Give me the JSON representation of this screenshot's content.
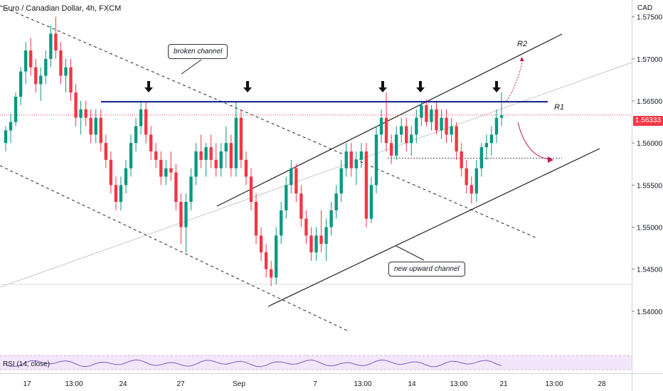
{
  "header": {
    "symbol_line": "Euro / Canadian Dollar, 4h, FXCM",
    "currency": "CAD"
  },
  "annotations": {
    "broken_channel": "broken channel",
    "new_upward_channel": "new upward channel",
    "r1": "R1",
    "r2": "R2"
  },
  "indicator": {
    "rsi_label": "RSI (14, close)"
  },
  "chart_data": {
    "type": "candlestick",
    "symbol": "EURCAD",
    "timeframe": "4h",
    "source": "FXCM",
    "price_axis": {
      "ticks": [
        "1.57500",
        "1.57000",
        "1.56500",
        "1.56000",
        "1.55500",
        "1.55000",
        "1.54500",
        "1.54000"
      ],
      "range": [
        1.535,
        1.577
      ],
      "current_price": "1.56333"
    },
    "time_axis": {
      "ticks": [
        "17",
        "13:00",
        "24",
        "27",
        "Sep",
        "7",
        "13:00",
        "14",
        "13:00",
        "21",
        "13:00",
        "28"
      ]
    },
    "levels": [
      {
        "name": "R1",
        "price": 1.5649
      },
      {
        "name": "support",
        "price": 1.5582
      },
      {
        "name": "low",
        "price": 1.5432
      }
    ],
    "candles": [
      [
        1.56,
        1.562,
        1.559,
        1.5615
      ],
      [
        1.5615,
        1.5635,
        1.56,
        1.5625
      ],
      [
        1.5625,
        1.566,
        1.562,
        1.5655
      ],
      [
        1.5655,
        1.569,
        1.5645,
        1.5685
      ],
      [
        1.5685,
        1.572,
        1.567,
        1.571
      ],
      [
        1.571,
        1.5725,
        1.568,
        1.569
      ],
      [
        1.569,
        1.57,
        1.566,
        1.567
      ],
      [
        1.567,
        1.569,
        1.565,
        1.568
      ],
      [
        1.568,
        1.571,
        1.567,
        1.57
      ],
      [
        1.57,
        1.574,
        1.569,
        1.573
      ],
      [
        1.573,
        1.575,
        1.57,
        1.571
      ],
      [
        1.571,
        1.572,
        1.567,
        1.568
      ],
      [
        1.568,
        1.57,
        1.566,
        1.569
      ],
      [
        1.569,
        1.57,
        1.565,
        1.566
      ],
      [
        1.566,
        1.567,
        1.562,
        1.563
      ],
      [
        1.563,
        1.565,
        1.561,
        1.564
      ],
      [
        1.564,
        1.565,
        1.562,
        1.563
      ],
      [
        1.563,
        1.564,
        1.56,
        1.561
      ],
      [
        1.561,
        1.564,
        1.56,
        1.563
      ],
      [
        1.563,
        1.564,
        1.559,
        1.56
      ],
      [
        1.56,
        1.561,
        1.557,
        1.558
      ],
      [
        1.558,
        1.559,
        1.554,
        1.555
      ],
      [
        1.555,
        1.556,
        1.552,
        1.553
      ],
      [
        1.553,
        1.556,
        1.552,
        1.555
      ],
      [
        1.555,
        1.558,
        1.554,
        1.557
      ],
      [
        1.557,
        1.561,
        1.556,
        1.56
      ],
      [
        1.56,
        1.563,
        1.559,
        1.562
      ],
      [
        1.562,
        1.565,
        1.561,
        1.564
      ],
      [
        1.564,
        1.565,
        1.56,
        1.561
      ],
      [
        1.561,
        1.562,
        1.558,
        1.559
      ],
      [
        1.559,
        1.56,
        1.557,
        1.558
      ],
      [
        1.558,
        1.559,
        1.555,
        1.556
      ],
      [
        1.556,
        1.558,
        1.555,
        1.557
      ],
      [
        1.557,
        1.559,
        1.5555,
        1.5565
      ],
      [
        1.5565,
        1.5575,
        1.552,
        1.553
      ],
      [
        1.553,
        1.554,
        1.548,
        1.55
      ],
      [
        1.55,
        1.554,
        1.547,
        1.553
      ],
      [
        1.553,
        1.557,
        1.552,
        1.556
      ],
      [
        1.556,
        1.56,
        1.555,
        1.559
      ],
      [
        1.559,
        1.561,
        1.557,
        1.558
      ],
      [
        1.558,
        1.56,
        1.556,
        1.5595
      ],
      [
        1.5595,
        1.561,
        1.557,
        1.558
      ],
      [
        1.558,
        1.56,
        1.556,
        1.557
      ],
      [
        1.557,
        1.56,
        1.556,
        1.559
      ],
      [
        1.559,
        1.562,
        1.557,
        1.56
      ],
      [
        1.56,
        1.561,
        1.556,
        1.557
      ],
      [
        1.557,
        1.565,
        1.556,
        1.563
      ],
      [
        1.563,
        1.564,
        1.557,
        1.558
      ],
      [
        1.558,
        1.559,
        1.555,
        1.556
      ],
      [
        1.556,
        1.557,
        1.552,
        1.553
      ],
      [
        1.553,
        1.554,
        1.548,
        1.549
      ],
      [
        1.549,
        1.55,
        1.546,
        1.547
      ],
      [
        1.547,
        1.548,
        1.544,
        1.545
      ],
      [
        1.545,
        1.546,
        1.543,
        1.544
      ],
      [
        1.544,
        1.55,
        1.5432,
        1.549
      ],
      [
        1.549,
        1.553,
        1.548,
        1.552
      ],
      [
        1.552,
        1.556,
        1.551,
        1.555
      ],
      [
        1.555,
        1.558,
        1.554,
        1.557
      ],
      [
        1.557,
        1.5575,
        1.553,
        1.554
      ],
      [
        1.554,
        1.555,
        1.55,
        1.551
      ],
      [
        1.551,
        1.552,
        1.548,
        1.549
      ],
      [
        1.549,
        1.55,
        1.546,
        1.547
      ],
      [
        1.547,
        1.55,
        1.546,
        1.549
      ],
      [
        1.549,
        1.552,
        1.547,
        1.548
      ],
      [
        1.548,
        1.551,
        1.546,
        1.55
      ],
      [
        1.55,
        1.553,
        1.549,
        1.552
      ],
      [
        1.552,
        1.555,
        1.551,
        1.554
      ],
      [
        1.554,
        1.558,
        1.553,
        1.557
      ],
      [
        1.557,
        1.56,
        1.556,
        1.559
      ],
      [
        1.559,
        1.56,
        1.556,
        1.557
      ],
      [
        1.557,
        1.559,
        1.555,
        1.558
      ],
      [
        1.558,
        1.56,
        1.557,
        1.559
      ],
      [
        1.559,
        1.56,
        1.55,
        1.551
      ],
      [
        1.551,
        1.556,
        1.5505,
        1.555
      ],
      [
        1.555,
        1.562,
        1.554,
        1.561
      ],
      [
        1.561,
        1.564,
        1.56,
        1.563
      ],
      [
        1.563,
        1.566,
        1.559,
        1.56
      ],
      [
        1.56,
        1.561,
        1.5575,
        1.5585
      ],
      [
        1.5585,
        1.562,
        1.558,
        1.561
      ],
      [
        1.561,
        1.563,
        1.56,
        1.562
      ],
      [
        1.562,
        1.563,
        1.559,
        1.56
      ],
      [
        1.56,
        1.562,
        1.5585,
        1.561
      ],
      [
        1.561,
        1.564,
        1.56,
        1.563
      ],
      [
        1.563,
        1.565,
        1.562,
        1.5645
      ],
      [
        1.5645,
        1.5652,
        1.562,
        1.5625
      ],
      [
        1.5625,
        1.5645,
        1.5615,
        1.564
      ],
      [
        1.564,
        1.565,
        1.561,
        1.5615
      ],
      [
        1.5615,
        1.564,
        1.5605,
        1.563
      ],
      [
        1.563,
        1.564,
        1.56,
        1.561
      ],
      [
        1.561,
        1.563,
        1.56,
        1.562
      ],
      [
        1.562,
        1.5625,
        1.558,
        1.559
      ],
      [
        1.559,
        1.56,
        1.556,
        1.557
      ],
      [
        1.557,
        1.558,
        1.554,
        1.555
      ],
      [
        1.555,
        1.556,
        1.5528,
        1.554
      ],
      [
        1.554,
        1.558,
        1.553,
        1.557
      ],
      [
        1.557,
        1.56,
        1.556,
        1.5595
      ],
      [
        1.5595,
        1.561,
        1.558,
        1.56
      ],
      [
        1.56,
        1.562,
        1.5585,
        1.561
      ],
      [
        1.561,
        1.564,
        1.56,
        1.563
      ],
      [
        1.563,
        1.566,
        1.562,
        1.5633
      ]
    ]
  }
}
